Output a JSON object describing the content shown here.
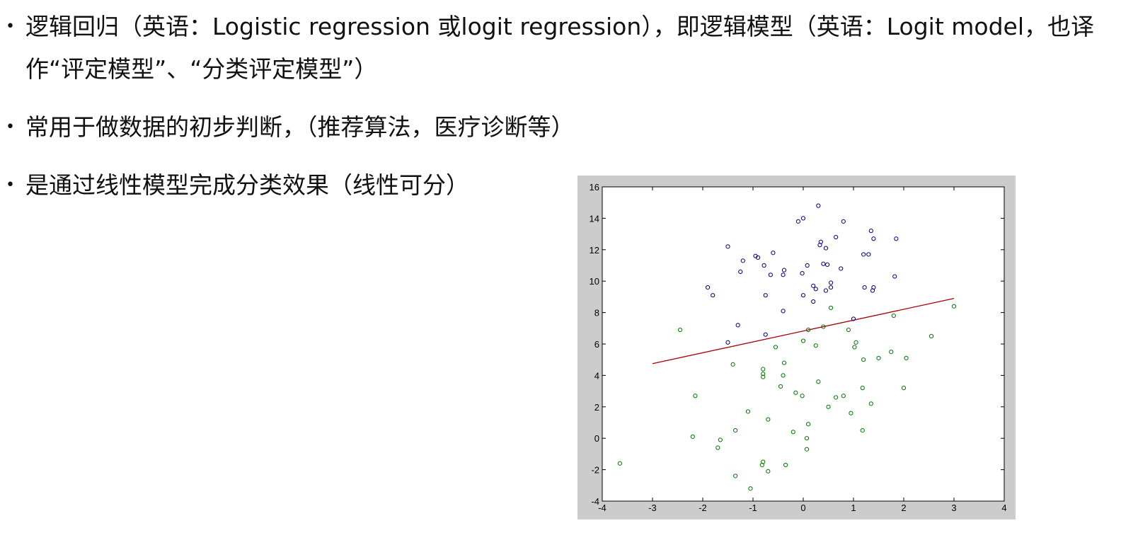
{
  "bullets": [
    {
      "text": "逻辑回归（英语：Logistic regression 或logit regression），即逻辑模型（英语：Logit model，也译作“评定模型”、“分类评定模型”）"
    },
    {
      "text": "常用于做数据的初步判断，（推荐算法，医疗诊断等）"
    },
    {
      "text": "是通过线性模型完成分类效果（线性可分）"
    }
  ],
  "bullet_glyph": "•",
  "chart_data": {
    "type": "scatter",
    "title": "",
    "xlabel": "",
    "ylabel": "",
    "xlim": [
      -4,
      4
    ],
    "ylim": [
      -4,
      16
    ],
    "x_ticks": [
      -4,
      -3,
      -2,
      -1,
      0,
      1,
      2,
      3,
      4
    ],
    "y_ticks": [
      -4,
      -2,
      0,
      2,
      4,
      6,
      8,
      10,
      12,
      14,
      16
    ],
    "grid": false,
    "background": "#cccccc",
    "series": [
      {
        "color": "#000080",
        "marker": "circle-open",
        "points": [
          [
            0.3,
            14.8
          ],
          [
            0.0,
            14.0
          ],
          [
            -0.1,
            13.8
          ],
          [
            0.8,
            13.8
          ],
          [
            1.35,
            13.2
          ],
          [
            1.4,
            12.7
          ],
          [
            1.85,
            12.7
          ],
          [
            0.65,
            12.8
          ],
          [
            0.35,
            12.5
          ],
          [
            0.33,
            12.3
          ],
          [
            0.45,
            12.1
          ],
          [
            -1.5,
            12.2
          ],
          [
            -0.6,
            11.8
          ],
          [
            -0.95,
            11.6
          ],
          [
            -0.9,
            11.5
          ],
          [
            -1.2,
            11.3
          ],
          [
            1.2,
            11.7
          ],
          [
            1.3,
            11.7
          ],
          [
            0.4,
            11.1
          ],
          [
            0.48,
            11.05
          ],
          [
            0.08,
            11.0
          ],
          [
            -0.78,
            11.0
          ],
          [
            -1.25,
            10.6
          ],
          [
            0.75,
            10.8
          ],
          [
            -0.38,
            10.7
          ],
          [
            -0.65,
            10.4
          ],
          [
            -0.4,
            10.4
          ],
          [
            -0.02,
            10.5
          ],
          [
            1.82,
            10.3
          ],
          [
            -1.9,
            9.6
          ],
          [
            0.2,
            9.7
          ],
          [
            0.55,
            9.9
          ],
          [
            0.25,
            9.5
          ],
          [
            0.45,
            9.4
          ],
          [
            0.55,
            9.6
          ],
          [
            1.22,
            9.6
          ],
          [
            1.4,
            9.6
          ],
          [
            1.38,
            9.4
          ],
          [
            -1.8,
            9.1
          ],
          [
            -0.75,
            9.1
          ],
          [
            0.0,
            9.1
          ],
          [
            0.2,
            8.7
          ],
          [
            -0.4,
            8.1
          ],
          [
            1.0,
            7.6
          ],
          [
            -1.3,
            7.2
          ],
          [
            -0.75,
            6.6
          ],
          [
            -1.5,
            6.1
          ]
        ]
      },
      {
        "color": "#007700",
        "marker": "circle-open",
        "points": [
          [
            3.0,
            8.4
          ],
          [
            0.55,
            8.3
          ],
          [
            1.8,
            7.8
          ],
          [
            0.4,
            7.1
          ],
          [
            -2.45,
            6.9
          ],
          [
            0.9,
            6.9
          ],
          [
            0.1,
            6.9
          ],
          [
            2.55,
            6.5
          ],
          [
            0.0,
            6.2
          ],
          [
            1.05,
            6.1
          ],
          [
            0.25,
            5.9
          ],
          [
            1.02,
            5.8
          ],
          [
            -0.55,
            5.8
          ],
          [
            1.75,
            5.5
          ],
          [
            1.5,
            5.1
          ],
          [
            2.05,
            5.1
          ],
          [
            1.2,
            5.0
          ],
          [
            -0.38,
            4.8
          ],
          [
            -1.4,
            4.7
          ],
          [
            -0.8,
            4.4
          ],
          [
            -0.8,
            4.1
          ],
          [
            -0.4,
            4.0
          ],
          [
            -0.8,
            3.9
          ],
          [
            0.3,
            3.6
          ],
          [
            -0.45,
            3.3
          ],
          [
            1.18,
            3.2
          ],
          [
            2.0,
            3.2
          ],
          [
            -0.15,
            2.9
          ],
          [
            -0.02,
            2.7
          ],
          [
            -2.15,
            2.7
          ],
          [
            0.65,
            2.6
          ],
          [
            0.8,
            2.7
          ],
          [
            1.35,
            2.2
          ],
          [
            0.5,
            2.0
          ],
          [
            -1.1,
            1.7
          ],
          [
            0.95,
            1.6
          ],
          [
            -0.7,
            1.2
          ],
          [
            0.1,
            0.9
          ],
          [
            -1.35,
            0.5
          ],
          [
            -0.2,
            0.4
          ],
          [
            1.18,
            0.5
          ],
          [
            -2.2,
            0.1
          ],
          [
            0.07,
            0.0
          ],
          [
            -1.65,
            -0.1
          ],
          [
            -1.7,
            -0.6
          ],
          [
            0.07,
            -0.7
          ],
          [
            -3.65,
            -1.6
          ],
          [
            -0.8,
            -1.5
          ],
          [
            -0.82,
            -1.7
          ],
          [
            -0.35,
            -1.7
          ],
          [
            -0.7,
            -2.1
          ],
          [
            -1.35,
            -2.4
          ],
          [
            -1.05,
            -3.2
          ]
        ]
      }
    ],
    "line": {
      "color": "#aa0000",
      "points": [
        [
          -3.0,
          4.75
        ],
        [
          3.0,
          8.9
        ]
      ]
    }
  }
}
